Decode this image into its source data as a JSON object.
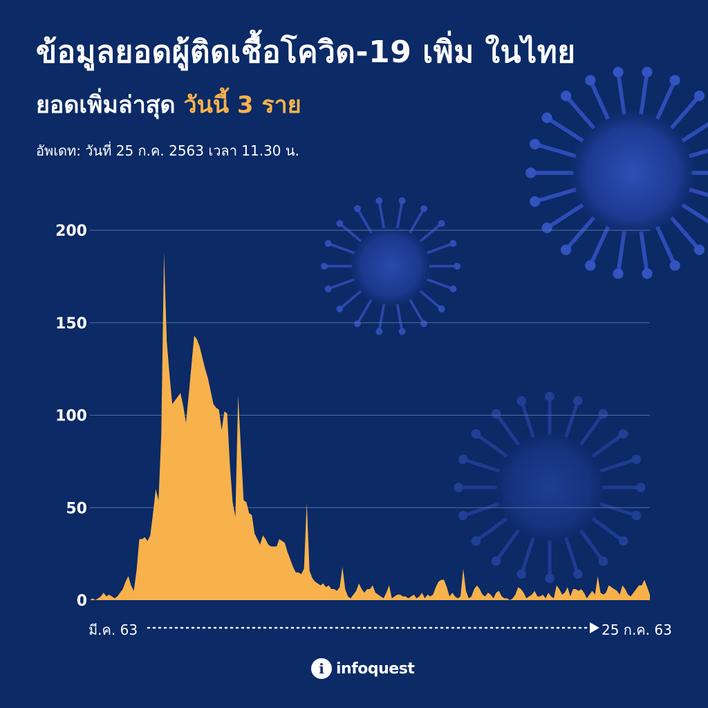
{
  "header": {
    "title": "ข้อมูลยอดผู้ติดเชื้อโควิด-19 เพิ่ม ในไทย",
    "subtitle_prefix": "ยอดเพิ่มล่าสุด",
    "subtitle_highlight": "วันนี้ 3 ราย",
    "update_text": "อัพเดท: วันที่ 25 ก.ค. 2563 เวลา 11.30 น."
  },
  "logo": {
    "icon": "i",
    "text": "infoquest"
  },
  "colors": {
    "background": "#0b2a66",
    "area": "#f7b24c",
    "grid": "#5570a6",
    "accent": "#f7b24c"
  },
  "chart_data": {
    "type": "area",
    "title": "",
    "xlabel": "",
    "ylabel": "",
    "ylim": [
      0,
      200
    ],
    "yticks": [
      0,
      50,
      100,
      150,
      200
    ],
    "grid": true,
    "x_start_label": "มี.ค. 63",
    "x_end_label": "25 ก.ค. 63",
    "series": [
      {
        "values": [
          0,
          1,
          0,
          1,
          2,
          4,
          2,
          3,
          2,
          1,
          2,
          4,
          6,
          10,
          13,
          8,
          5,
          16,
          33,
          33,
          34,
          32,
          35,
          47,
          60,
          54,
          89,
          188,
          140,
          122,
          106,
          108,
          110,
          112,
          105,
          96,
          111,
          127,
          143,
          141,
          137,
          131,
          125,
          120,
          113,
          106,
          104,
          103,
          92,
          102,
          101,
          73,
          53,
          45,
          111,
          82,
          54,
          53,
          47,
          46,
          36,
          33,
          30,
          35,
          33,
          30,
          29,
          29,
          29,
          33,
          32,
          31,
          26,
          22,
          18,
          15,
          15,
          14,
          17,
          53,
          16,
          12,
          10,
          9,
          8,
          9,
          7,
          8,
          6,
          6,
          5,
          7,
          18,
          6,
          2,
          1,
          3,
          5,
          9,
          6,
          4,
          6,
          6,
          8,
          4,
          3,
          2,
          1,
          4,
          8,
          1,
          2,
          3,
          3,
          2,
          2,
          1,
          2,
          3,
          1,
          2,
          4,
          1,
          3,
          2,
          3,
          7,
          10,
          11,
          11,
          7,
          2,
          4,
          2,
          1,
          2,
          17,
          5,
          1,
          2,
          6,
          8,
          6,
          3,
          2,
          4,
          3,
          1,
          4,
          5,
          2,
          1,
          1,
          0,
          1,
          3,
          7,
          6,
          4,
          1,
          2,
          3,
          5,
          2,
          2,
          3,
          1,
          4,
          2,
          1,
          8,
          6,
          3,
          4,
          7,
          2,
          6,
          6,
          5,
          6,
          4,
          1,
          3,
          5,
          3,
          13,
          4,
          3,
          4,
          8,
          7,
          6,
          5,
          3,
          8,
          6,
          3,
          2,
          4,
          6,
          8,
          8,
          11,
          7,
          3
        ]
      }
    ]
  }
}
